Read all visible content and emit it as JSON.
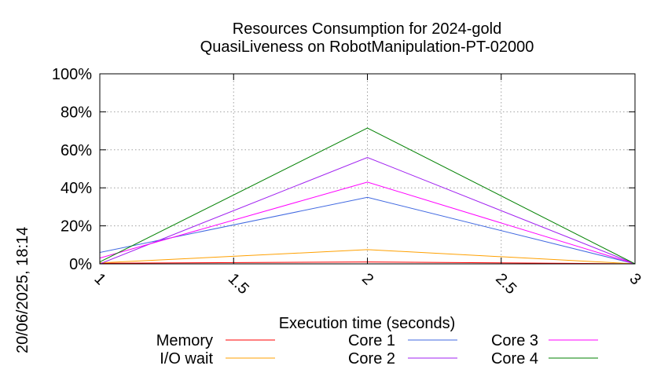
{
  "chart_data": {
    "type": "line",
    "title": "Resources Consumption for 2024-gold",
    "subtitle": "QuasiLiveness on RobotManipulation-PT-02000",
    "xlabel": "Execution time (seconds)",
    "ylabel": "",
    "xlim": [
      1,
      3
    ],
    "ylim": [
      0,
      100
    ],
    "xticks": [
      "1",
      "1.5",
      "2",
      "2.5",
      "3"
    ],
    "yticks": [
      "0%",
      "20%",
      "40%",
      "60%",
      "80%",
      "100%"
    ],
    "grid": true,
    "legend_position": "bottom",
    "x": [
      1,
      2,
      3
    ],
    "series": [
      {
        "name": "Memory",
        "color": "#ff0000",
        "values": [
          0.3,
          1.0,
          0.0
        ]
      },
      {
        "name": "I/O wait",
        "color": "#ffa000",
        "values": [
          0.5,
          7.5,
          0.0
        ]
      },
      {
        "name": "Core 1",
        "color": "#4169e1",
        "values": [
          6.0,
          35.0,
          0.0
        ]
      },
      {
        "name": "Core 2",
        "color": "#a020f0",
        "values": [
          0.0,
          56.0,
          0.0
        ]
      },
      {
        "name": "Core 3",
        "color": "#ff00ff",
        "values": [
          3.0,
          43.0,
          0.0
        ]
      },
      {
        "name": "Core 4",
        "color": "#008000",
        "values": [
          1.0,
          71.5,
          0.0
        ]
      }
    ]
  },
  "timestamp": "20/06/2025, 18:14"
}
